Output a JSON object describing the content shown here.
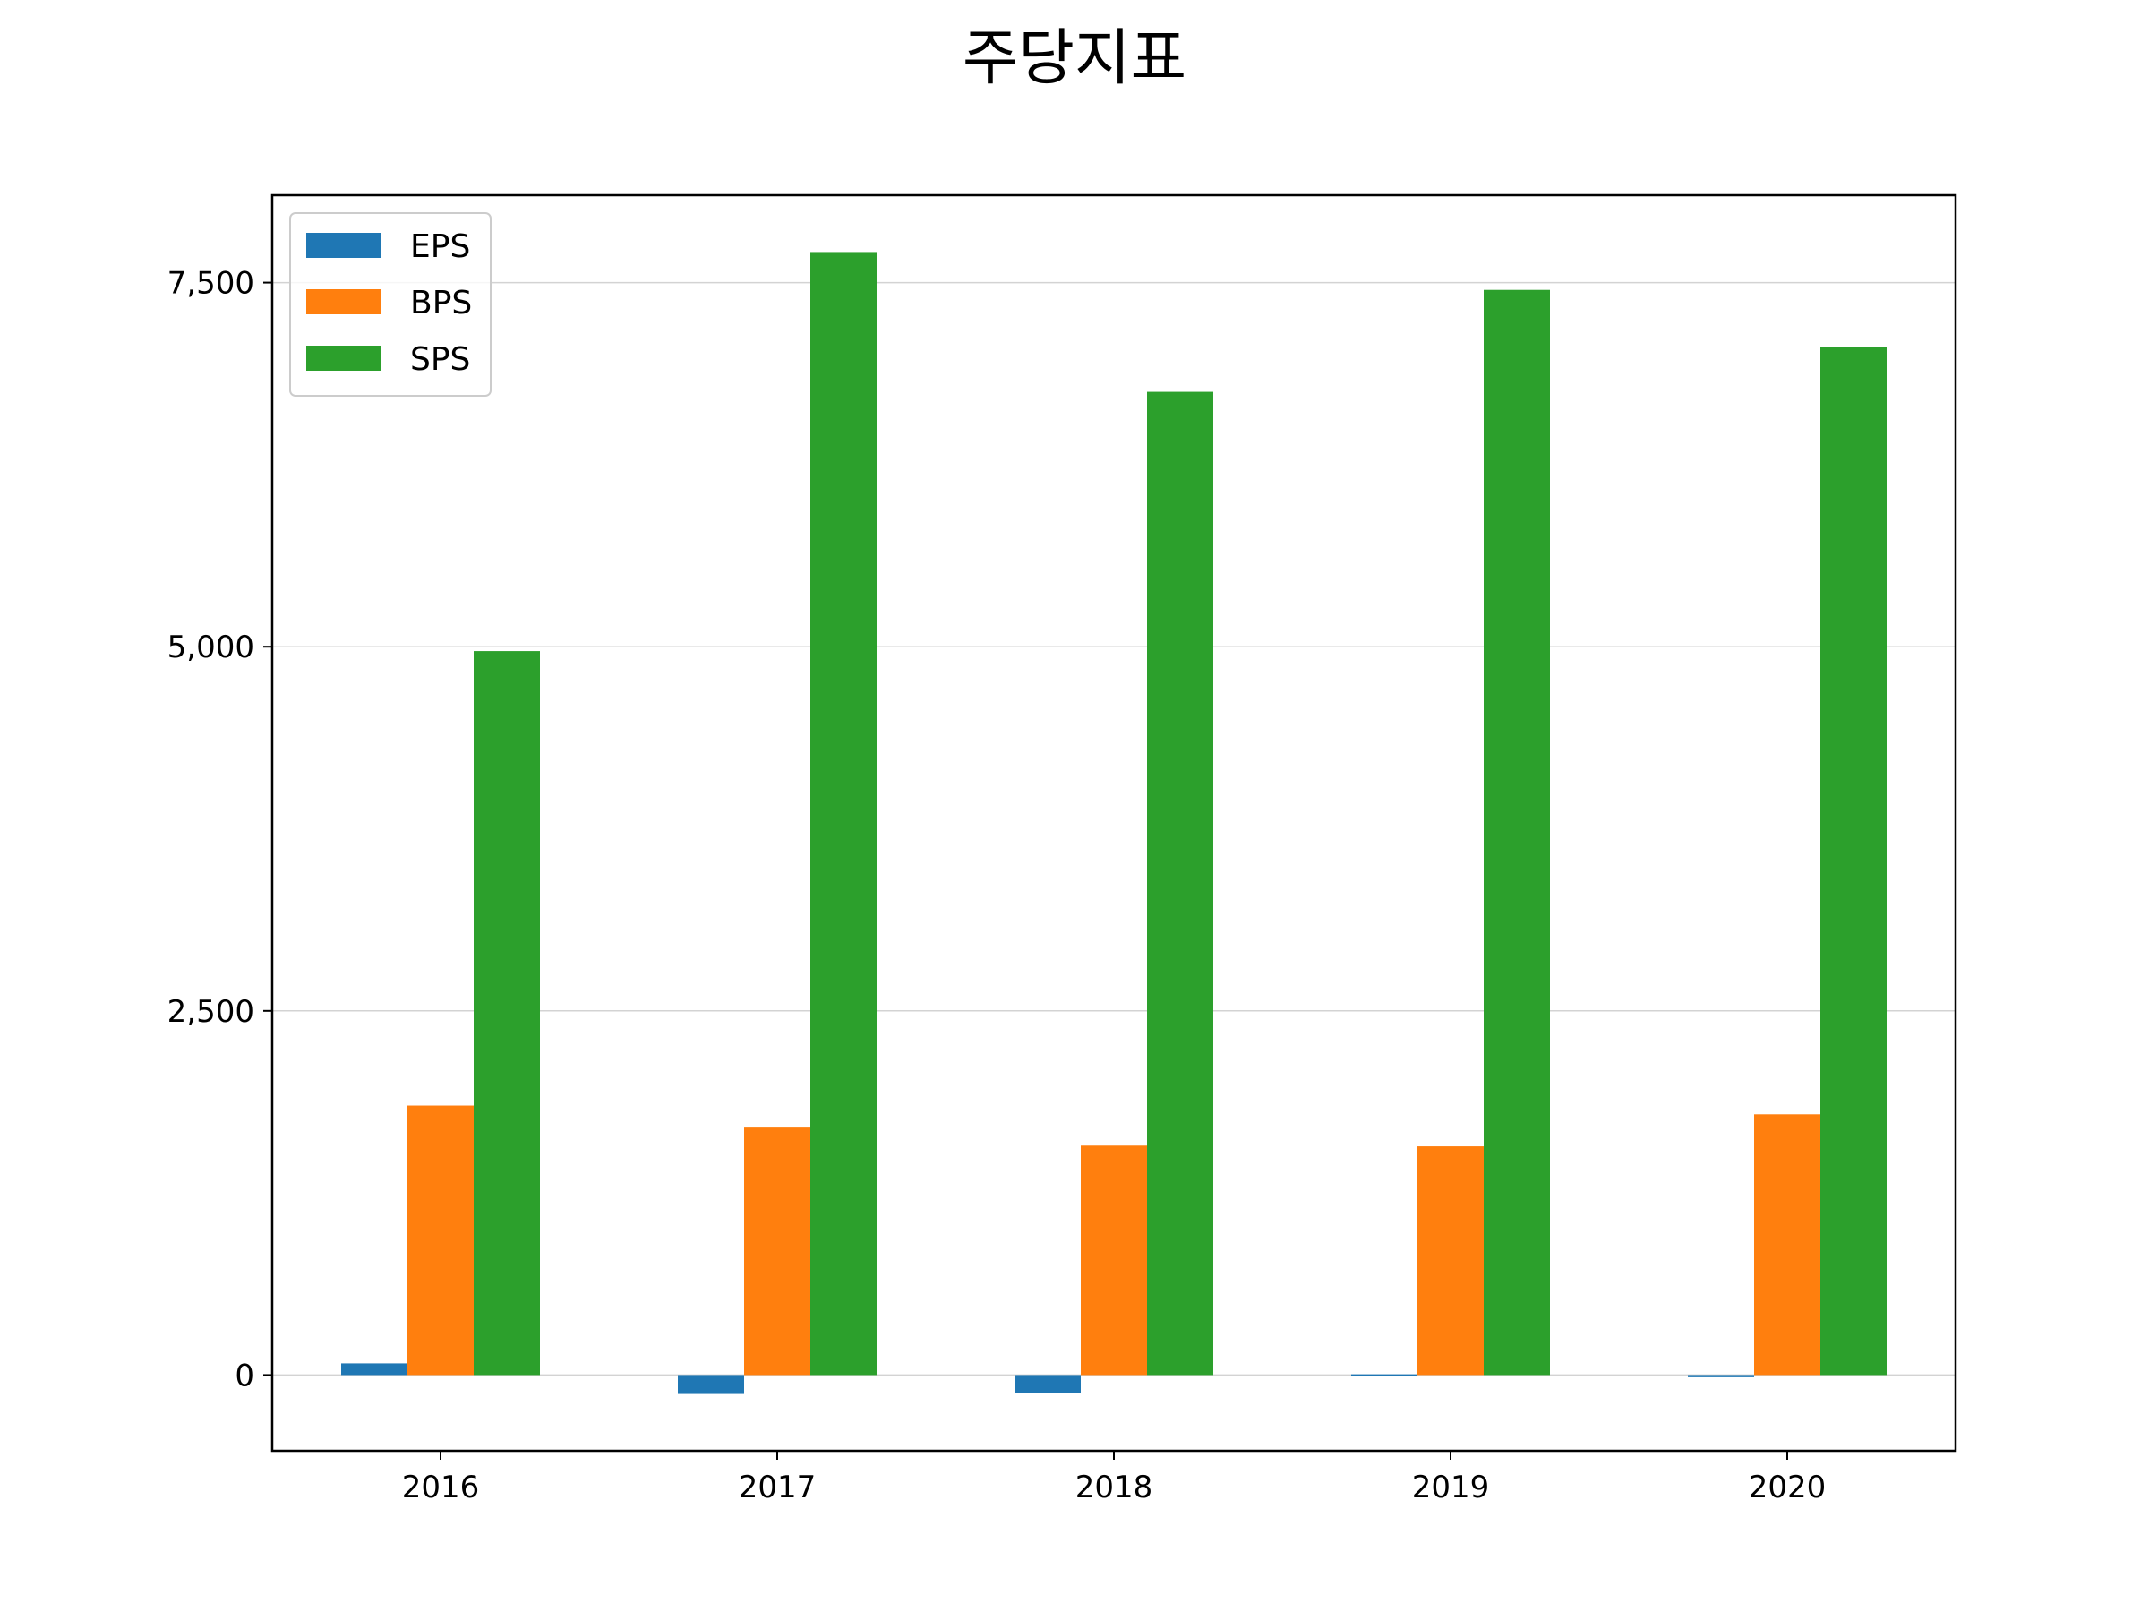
{
  "chart_data": {
    "type": "bar",
    "title": "주당지표",
    "xlabel": "",
    "ylabel": "",
    "categories": [
      "2016",
      "2017",
      "2018",
      "2019",
      "2020"
    ],
    "series": [
      {
        "name": "EPS",
        "values": [
          80,
          -130,
          -125,
          5,
          -15
        ],
        "color": "#1f77b4"
      },
      {
        "name": "BPS",
        "values": [
          1850,
          1705,
          1575,
          1570,
          1790
        ],
        "color": "#ff7f0e"
      },
      {
        "name": "SPS",
        "values": [
          4970,
          7710,
          6750,
          7450,
          7060
        ],
        "color": "#2ca02c"
      }
    ],
    "ylim": [
      -520,
      8100
    ],
    "yticks": [
      0,
      2500,
      5000,
      7500
    ],
    "ytick_labels": [
      "0",
      "2,500",
      "5,000",
      "7,500"
    ],
    "grid": "y",
    "legend": "top-left"
  }
}
